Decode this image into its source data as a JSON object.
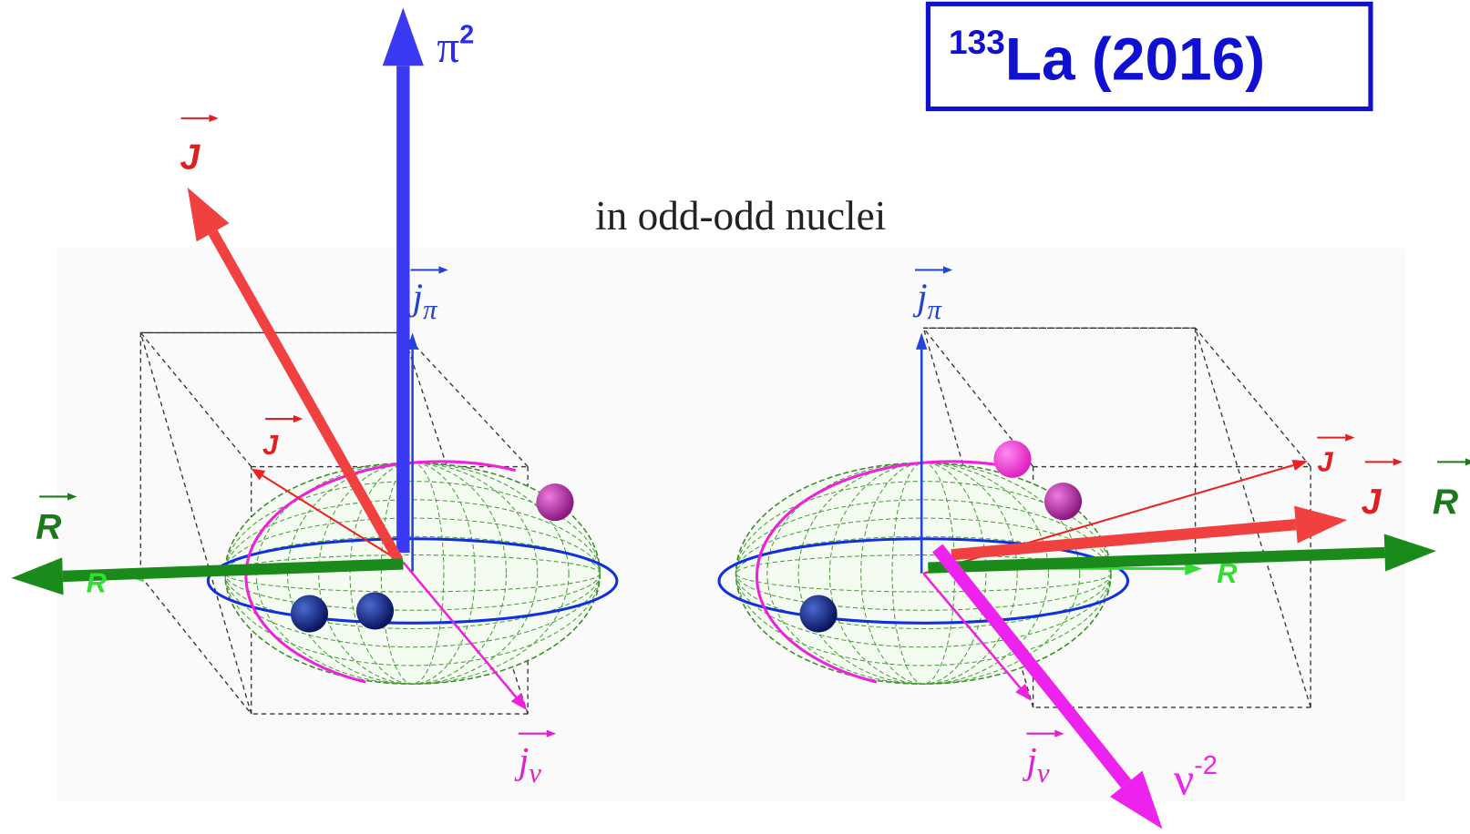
{
  "title": {
    "mass": "133",
    "rest": "La (2016)"
  },
  "subtitle": "in odd-odd nuclei",
  "left": {
    "pi_symbol": "π",
    "pi_power": "2",
    "J_big": "J",
    "J_small": "J",
    "R_big": "R",
    "R_small": "R",
    "j_pi": "j",
    "j_pi_sub": "π",
    "j_nu": "j",
    "j_nu_sub": "ν"
  },
  "right": {
    "nu_symbol": "ν",
    "nu_power": "-2",
    "J_big": "J",
    "J_small": "J",
    "R_big": "R",
    "R_small": "R",
    "j_pi": "j",
    "j_pi_sub": "π",
    "j_nu": "j",
    "j_nu_sub": "ν"
  }
}
